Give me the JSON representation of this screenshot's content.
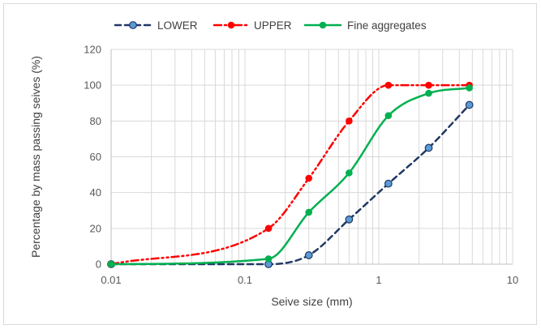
{
  "chart_data": {
    "type": "line",
    "xscale": "log",
    "xlim": [
      0.01,
      10
    ],
    "ylim": [
      0,
      120
    ],
    "xticks": [
      0.01,
      0.1,
      1,
      10
    ],
    "xtick_labels": [
      "0.01",
      "0.1",
      "1",
      "10"
    ],
    "yticks": [
      0,
      20,
      40,
      60,
      80,
      100,
      120
    ],
    "ytick_labels": [
      "0",
      "20",
      "40",
      "60",
      "80",
      "100",
      "120"
    ],
    "xlabel": "Seive size (mm)",
    "ylabel": "Percentage by mass passing seives (%)",
    "grid": true,
    "legend_position": "top",
    "series": [
      {
        "name": "LOWER",
        "color": "#1f3864",
        "marker_color": "#5b9bd5",
        "style": "dashed",
        "x": [
          0.01,
          0.15,
          0.3,
          0.6,
          1.18,
          2.36,
          4.75
        ],
        "y": [
          0,
          0,
          5,
          25,
          45,
          65,
          89
        ]
      },
      {
        "name": "UPPER",
        "color": "#ff0000",
        "marker_color": "#ff0000",
        "style": "dash-dot-dot",
        "x": [
          0.01,
          0.15,
          0.3,
          0.6,
          1.18,
          2.36,
          4.75
        ],
        "y": [
          0,
          20,
          48,
          80,
          100,
          100,
          100
        ]
      },
      {
        "name": "Fine aggregates",
        "color": "#00b050",
        "marker_color": "#00b050",
        "style": "solid",
        "x": [
          0.01,
          0.15,
          0.3,
          0.6,
          1.18,
          2.36,
          4.75
        ],
        "y": [
          0,
          3,
          29,
          51,
          83,
          95.5,
          98.5
        ]
      }
    ]
  }
}
